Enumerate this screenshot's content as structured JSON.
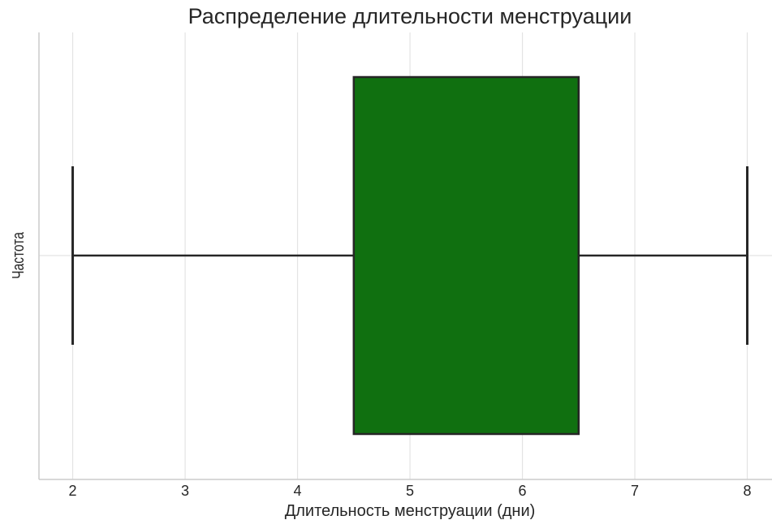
{
  "chart_data": {
    "type": "boxplot",
    "title": "Распределение длительности менструации",
    "xlabel": "Длительность менструации (дни)",
    "ylabel": "Частота",
    "xlim": [
      1.7,
      8.22
    ],
    "xticks": [
      2,
      3,
      4,
      5,
      6,
      7,
      8
    ],
    "grid": true,
    "box": {
      "whisker_low": 2,
      "q1": 4.5,
      "median": 6.5,
      "q3": 6.5,
      "whisker_high": 8,
      "color": "#107010",
      "edge_color": "#262626"
    }
  }
}
